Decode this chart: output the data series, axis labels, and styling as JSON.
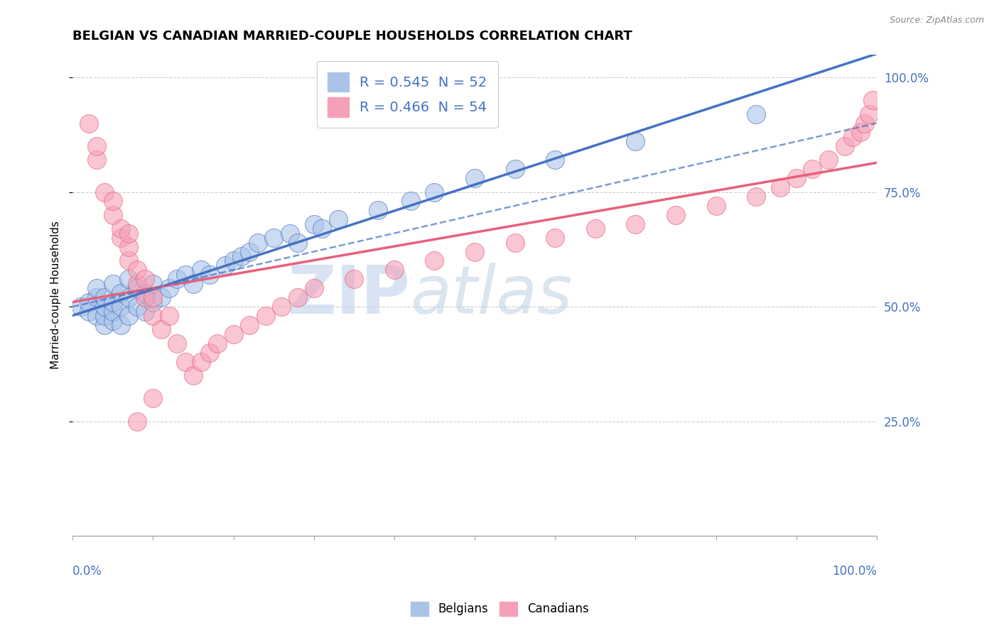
{
  "title": "BELGIAN VS CANADIAN MARRIED-COUPLE HOUSEHOLDS CORRELATION CHART",
  "source": "Source: ZipAtlas.com",
  "ylabel": "Married-couple Households",
  "legend_belgian": "R = 0.545  N = 52",
  "legend_canadian": "R = 0.466  N = 54",
  "belgian_color": "#aac4e8",
  "canadian_color": "#f5a0b8",
  "belgian_line_color": "#4472c4",
  "canadian_line_color": "#e8607a",
  "watermark_zip": "ZIP",
  "watermark_atlas": "atlas",
  "belgian_N": 52,
  "canadian_N": 54,
  "xlim": [
    0.0,
    1.0
  ],
  "ylim": [
    0.0,
    1.05
  ],
  "belgian_x": [
    0.01,
    0.02,
    0.02,
    0.03,
    0.03,
    0.03,
    0.04,
    0.04,
    0.04,
    0.04,
    0.05,
    0.05,
    0.05,
    0.05,
    0.06,
    0.06,
    0.06,
    0.07,
    0.07,
    0.07,
    0.08,
    0.08,
    0.09,
    0.09,
    0.1,
    0.1,
    0.11,
    0.12,
    0.13,
    0.14,
    0.15,
    0.16,
    0.17,
    0.19,
    0.2,
    0.21,
    0.22,
    0.23,
    0.25,
    0.27,
    0.28,
    0.3,
    0.31,
    0.33,
    0.38,
    0.42,
    0.45,
    0.5,
    0.55,
    0.6,
    0.7,
    0.85
  ],
  "belgian_y": [
    0.5,
    0.49,
    0.51,
    0.48,
    0.52,
    0.54,
    0.46,
    0.48,
    0.5,
    0.52,
    0.47,
    0.49,
    0.51,
    0.55,
    0.46,
    0.5,
    0.53,
    0.48,
    0.52,
    0.56,
    0.5,
    0.54,
    0.49,
    0.53,
    0.51,
    0.55,
    0.52,
    0.54,
    0.56,
    0.57,
    0.55,
    0.58,
    0.57,
    0.59,
    0.6,
    0.61,
    0.62,
    0.64,
    0.65,
    0.66,
    0.64,
    0.68,
    0.67,
    0.69,
    0.71,
    0.73,
    0.75,
    0.78,
    0.8,
    0.82,
    0.86,
    0.92
  ],
  "canadian_x": [
    0.02,
    0.03,
    0.03,
    0.04,
    0.05,
    0.05,
    0.06,
    0.06,
    0.07,
    0.07,
    0.07,
    0.08,
    0.08,
    0.09,
    0.09,
    0.1,
    0.1,
    0.11,
    0.12,
    0.13,
    0.14,
    0.15,
    0.16,
    0.17,
    0.18,
    0.2,
    0.22,
    0.24,
    0.26,
    0.28,
    0.3,
    0.35,
    0.4,
    0.45,
    0.5,
    0.55,
    0.6,
    0.65,
    0.7,
    0.75,
    0.8,
    0.85,
    0.88,
    0.9,
    0.92,
    0.94,
    0.96,
    0.97,
    0.98,
    0.985,
    0.99,
    0.995,
    0.1,
    0.08
  ],
  "canadian_y": [
    0.9,
    0.82,
    0.85,
    0.75,
    0.7,
    0.73,
    0.65,
    0.67,
    0.6,
    0.63,
    0.66,
    0.55,
    0.58,
    0.52,
    0.56,
    0.48,
    0.52,
    0.45,
    0.48,
    0.42,
    0.38,
    0.35,
    0.38,
    0.4,
    0.42,
    0.44,
    0.46,
    0.48,
    0.5,
    0.52,
    0.54,
    0.56,
    0.58,
    0.6,
    0.62,
    0.64,
    0.65,
    0.67,
    0.68,
    0.7,
    0.72,
    0.74,
    0.76,
    0.78,
    0.8,
    0.82,
    0.85,
    0.87,
    0.88,
    0.9,
    0.92,
    0.95,
    0.3,
    0.25
  ]
}
